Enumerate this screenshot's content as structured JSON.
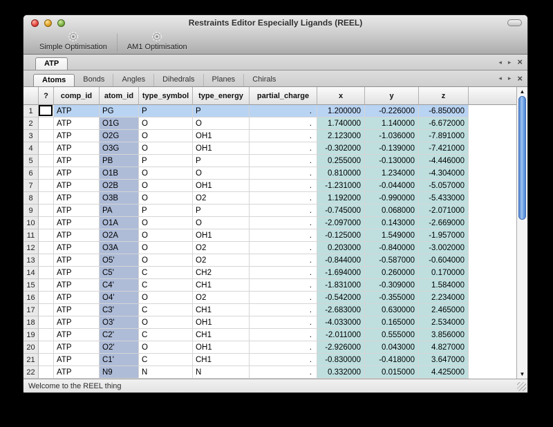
{
  "window": {
    "title": "Restraints Editor Especially Ligands (REEL)"
  },
  "toolbar": {
    "items": [
      {
        "label": "Simple Optimisation",
        "icon": "gear-icon"
      },
      {
        "label": "AM1 Optimisation",
        "icon": "gear-icon"
      }
    ]
  },
  "icons": {
    "scroll_left": "◂",
    "scroll_right": "▸",
    "close": "×",
    "up_arrow": "▲",
    "down_arrow": "▼"
  },
  "document_tabs": {
    "tabs": [
      {
        "label": "ATP",
        "active": true
      }
    ]
  },
  "section_tabs": {
    "tabs": [
      {
        "label": "Atoms",
        "active": true
      },
      {
        "label": "Bonds",
        "active": false
      },
      {
        "label": "Angles",
        "active": false
      },
      {
        "label": "Dihedrals",
        "active": false
      },
      {
        "label": "Planes",
        "active": false
      },
      {
        "label": "Chirals",
        "active": false
      }
    ]
  },
  "table": {
    "headers": [
      "?",
      "comp_id",
      "atom_id",
      "type_symbol",
      "type_energy",
      "partial_charge",
      "x",
      "y",
      "z"
    ],
    "rows": [
      {
        "num": 1,
        "comp_id": "ATP",
        "atom_id": "PG",
        "type_symbol": "P",
        "type_energy": "P",
        "partial_charge": ".",
        "x": "1.200000",
        "y": "-0.226000",
        "z": "-6.850000",
        "selected": true
      },
      {
        "num": 2,
        "comp_id": "ATP",
        "atom_id": "O1G",
        "type_symbol": "O",
        "type_energy": "O",
        "partial_charge": ".",
        "x": "1.740000",
        "y": "1.140000",
        "z": "-6.672000",
        "selected": false
      },
      {
        "num": 3,
        "comp_id": "ATP",
        "atom_id": "O2G",
        "type_symbol": "O",
        "type_energy": "OH1",
        "partial_charge": ".",
        "x": "2.123000",
        "y": "-1.036000",
        "z": "-7.891000",
        "selected": false
      },
      {
        "num": 4,
        "comp_id": "ATP",
        "atom_id": "O3G",
        "type_symbol": "O",
        "type_energy": "OH1",
        "partial_charge": ".",
        "x": "-0.302000",
        "y": "-0.139000",
        "z": "-7.421000",
        "selected": false
      },
      {
        "num": 5,
        "comp_id": "ATP",
        "atom_id": "PB",
        "type_symbol": "P",
        "type_energy": "P",
        "partial_charge": ".",
        "x": "0.255000",
        "y": "-0.130000",
        "z": "-4.446000",
        "selected": false
      },
      {
        "num": 6,
        "comp_id": "ATP",
        "atom_id": "O1B",
        "type_symbol": "O",
        "type_energy": "O",
        "partial_charge": ".",
        "x": "0.810000",
        "y": "1.234000",
        "z": "-4.304000",
        "selected": false
      },
      {
        "num": 7,
        "comp_id": "ATP",
        "atom_id": "O2B",
        "type_symbol": "O",
        "type_energy": "OH1",
        "partial_charge": ".",
        "x": "-1.231000",
        "y": "-0.044000",
        "z": "-5.057000",
        "selected": false
      },
      {
        "num": 8,
        "comp_id": "ATP",
        "atom_id": "O3B",
        "type_symbol": "O",
        "type_energy": "O2",
        "partial_charge": ".",
        "x": "1.192000",
        "y": "-0.990000",
        "z": "-5.433000",
        "selected": false
      },
      {
        "num": 9,
        "comp_id": "ATP",
        "atom_id": "PA",
        "type_symbol": "P",
        "type_energy": "P",
        "partial_charge": ".",
        "x": "-0.745000",
        "y": "0.068000",
        "z": "-2.071000",
        "selected": false
      },
      {
        "num": 10,
        "comp_id": "ATP",
        "atom_id": "O1A",
        "type_symbol": "O",
        "type_energy": "O",
        "partial_charge": ".",
        "x": "-2.097000",
        "y": "0.143000",
        "z": "-2.669000",
        "selected": false
      },
      {
        "num": 11,
        "comp_id": "ATP",
        "atom_id": "O2A",
        "type_symbol": "O",
        "type_energy": "OH1",
        "partial_charge": ".",
        "x": "-0.125000",
        "y": "1.549000",
        "z": "-1.957000",
        "selected": false
      },
      {
        "num": 12,
        "comp_id": "ATP",
        "atom_id": "O3A",
        "type_symbol": "O",
        "type_energy": "O2",
        "partial_charge": ".",
        "x": "0.203000",
        "y": "-0.840000",
        "z": "-3.002000",
        "selected": false
      },
      {
        "num": 13,
        "comp_id": "ATP",
        "atom_id": "O5'",
        "type_symbol": "O",
        "type_energy": "O2",
        "partial_charge": ".",
        "x": "-0.844000",
        "y": "-0.587000",
        "z": "-0.604000",
        "selected": false
      },
      {
        "num": 14,
        "comp_id": "ATP",
        "atom_id": "C5'",
        "type_symbol": "C",
        "type_energy": "CH2",
        "partial_charge": ".",
        "x": "-1.694000",
        "y": "0.260000",
        "z": "0.170000",
        "selected": false
      },
      {
        "num": 15,
        "comp_id": "ATP",
        "atom_id": "C4'",
        "type_symbol": "C",
        "type_energy": "CH1",
        "partial_charge": ".",
        "x": "-1.831000",
        "y": "-0.309000",
        "z": "1.584000",
        "selected": false
      },
      {
        "num": 16,
        "comp_id": "ATP",
        "atom_id": "O4'",
        "type_symbol": "O",
        "type_energy": "O2",
        "partial_charge": ".",
        "x": "-0.542000",
        "y": "-0.355000",
        "z": "2.234000",
        "selected": false
      },
      {
        "num": 17,
        "comp_id": "ATP",
        "atom_id": "C3'",
        "type_symbol": "C",
        "type_energy": "CH1",
        "partial_charge": ".",
        "x": "-2.683000",
        "y": "0.630000",
        "z": "2.465000",
        "selected": false
      },
      {
        "num": 18,
        "comp_id": "ATP",
        "atom_id": "O3'",
        "type_symbol": "O",
        "type_energy": "OH1",
        "partial_charge": ".",
        "x": "-4.033000",
        "y": "0.165000",
        "z": "2.534000",
        "selected": false
      },
      {
        "num": 19,
        "comp_id": "ATP",
        "atom_id": "C2'",
        "type_symbol": "C",
        "type_energy": "CH1",
        "partial_charge": ".",
        "x": "-2.011000",
        "y": "0.555000",
        "z": "3.856000",
        "selected": false
      },
      {
        "num": 20,
        "comp_id": "ATP",
        "atom_id": "O2'",
        "type_symbol": "O",
        "type_energy": "OH1",
        "partial_charge": ".",
        "x": "-2.926000",
        "y": "0.043000",
        "z": "4.827000",
        "selected": false
      },
      {
        "num": 21,
        "comp_id": "ATP",
        "atom_id": "C1'",
        "type_symbol": "C",
        "type_energy": "CH1",
        "partial_charge": ".",
        "x": "-0.830000",
        "y": "-0.418000",
        "z": "3.647000",
        "selected": false
      },
      {
        "num": 22,
        "comp_id": "ATP",
        "atom_id": "N9",
        "type_symbol": "N",
        "type_energy": "N",
        "partial_charge": ".",
        "x": "0.332000",
        "y": "0.015000",
        "z": "4.425000",
        "selected": false
      }
    ]
  },
  "statusbar": {
    "message": "Welcome to the REEL thing"
  },
  "colors": {
    "selection": "#b9d3f2",
    "col-atomid": "#aebcd8",
    "col-xyz": "#bfdfdf",
    "thumb-blue": "#4e86d5"
  }
}
